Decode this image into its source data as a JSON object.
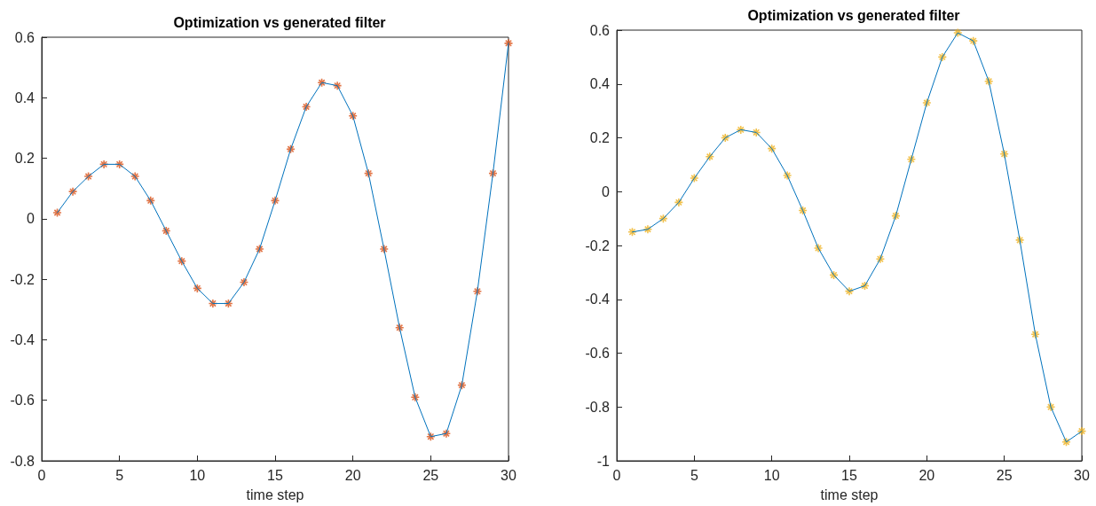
{
  "chart_data": [
    {
      "type": "line",
      "title": "Optimization vs generated filter",
      "xlabel": "time step",
      "x": [
        1,
        2,
        3,
        4,
        5,
        6,
        7,
        8,
        9,
        10,
        11,
        12,
        13,
        14,
        15,
        16,
        17,
        18,
        19,
        20,
        21,
        22,
        23,
        24,
        25,
        26,
        27,
        28,
        29,
        30
      ],
      "series": [
        {
          "type": "line",
          "color": "#0072bd",
          "marker": "none",
          "values": [
            0.02,
            0.09,
            0.14,
            0.18,
            0.18,
            0.14,
            0.06,
            -0.04,
            -0.14,
            -0.23,
            -0.28,
            -0.28,
            -0.21,
            -0.1,
            0.06,
            0.23,
            0.37,
            0.45,
            0.44,
            0.34,
            0.15,
            -0.1,
            -0.36,
            -0.59,
            -0.72,
            -0.71,
            -0.55,
            -0.24,
            0.15,
            0.58
          ]
        },
        {
          "type": "scatter",
          "color": "#d95319",
          "marker": "cross",
          "values": [
            0.02,
            0.09,
            0.14,
            0.18,
            0.18,
            0.14,
            0.06,
            -0.04,
            -0.14,
            -0.23,
            -0.28,
            -0.28,
            -0.21,
            -0.1,
            0.06,
            0.23,
            0.37,
            0.45,
            0.44,
            0.34,
            0.15,
            -0.1,
            -0.36,
            -0.59,
            -0.72,
            -0.71,
            -0.55,
            -0.24,
            0.15,
            0.58
          ]
        }
      ],
      "xlim": [
        0,
        30
      ],
      "xticks": [
        0,
        5,
        10,
        15,
        20,
        25,
        30
      ],
      "ylim": [
        -0.8,
        0.6
      ],
      "yticks": [
        -0.8,
        -0.6,
        -0.4,
        -0.2,
        0,
        0.2,
        0.4,
        0.6
      ]
    },
    {
      "type": "line",
      "title": "Optimization vs generated filter",
      "xlabel": "time step",
      "x": [
        1,
        2,
        3,
        4,
        5,
        6,
        7,
        8,
        9,
        10,
        11,
        12,
        13,
        14,
        15,
        16,
        17,
        18,
        19,
        20,
        21,
        22,
        23,
        24,
        25,
        26,
        27,
        28,
        29,
        30
      ],
      "series": [
        {
          "type": "line",
          "color": "#0072bd",
          "marker": "none",
          "values": [
            -0.15,
            -0.14,
            -0.1,
            -0.04,
            0.05,
            0.13,
            0.2,
            0.23,
            0.22,
            0.16,
            0.06,
            -0.07,
            -0.21,
            -0.31,
            -0.37,
            -0.35,
            -0.25,
            -0.09,
            0.12,
            0.33,
            0.5,
            0.59,
            0.56,
            0.41,
            0.14,
            -0.18,
            -0.53,
            -0.8,
            -0.93,
            -0.89
          ]
        },
        {
          "type": "scatter",
          "color": "#edb120",
          "marker": "cross",
          "values": [
            -0.15,
            -0.14,
            -0.1,
            -0.04,
            0.05,
            0.13,
            0.2,
            0.23,
            0.22,
            0.16,
            0.06,
            -0.07,
            -0.21,
            -0.31,
            -0.37,
            -0.35,
            -0.25,
            -0.09,
            0.12,
            0.33,
            0.5,
            0.59,
            0.56,
            0.41,
            0.14,
            -0.18,
            -0.53,
            -0.8,
            -0.93,
            -0.89
          ]
        }
      ],
      "xlim": [
        0,
        30
      ],
      "xticks": [
        0,
        5,
        10,
        15,
        20,
        25,
        30
      ],
      "ylim": [
        -1,
        0.6
      ],
      "yticks": [
        -1,
        -0.8,
        -0.6,
        -0.4,
        -0.2,
        0,
        0.2,
        0.4,
        0.6
      ]
    }
  ]
}
